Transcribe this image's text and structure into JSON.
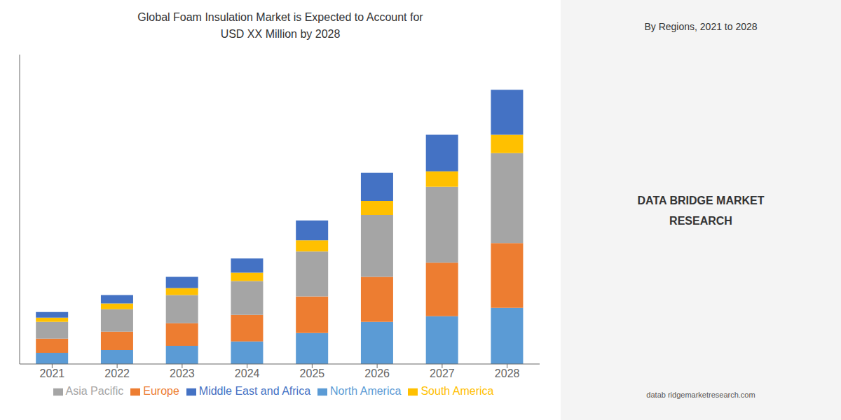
{
  "chart_data": {
    "type": "bar",
    "stacked": true,
    "title": "Global Foam Insulation Market is Expected to Account for",
    "subtitle": "USD XX Million by 2028",
    "categories": [
      "2021",
      "2022",
      "2023",
      "2024",
      "2025",
      "2026",
      "2027",
      "2028"
    ],
    "series": [
      {
        "name": "North America",
        "color": "#5B9BD5",
        "values": [
          0.4,
          0.5,
          0.65,
          0.8,
          1.1,
          1.5,
          1.7,
          2.0
        ]
      },
      {
        "name": "Europe",
        "color": "#ED7D31",
        "values": [
          0.5,
          0.65,
          0.8,
          0.95,
          1.3,
          1.6,
          1.9,
          2.3
        ]
      },
      {
        "name": "Asia Pacific",
        "color": "#A5A5A5",
        "values": [
          0.6,
          0.8,
          1.0,
          1.2,
          1.6,
          2.2,
          2.7,
          3.2
        ]
      },
      {
        "name": "South America",
        "color": "#FFC000",
        "values": [
          0.15,
          0.2,
          0.25,
          0.3,
          0.4,
          0.5,
          0.55,
          0.65
        ]
      },
      {
        "name": "Middle East and Africa",
        "color": "#4472C4",
        "values": [
          0.2,
          0.3,
          0.4,
          0.5,
          0.7,
          1.0,
          1.3,
          1.6
        ]
      }
    ],
    "ylim": [
      0,
      11
    ],
    "tick_labels": "x",
    "grid": false,
    "legend": "bottom",
    "annotations": [
      "By Regions, 2021 to 2028",
      "DATA BRIDGE MARKET\nRESEARCH",
      "datab ridgemarketresearch.com"
    ]
  }
}
